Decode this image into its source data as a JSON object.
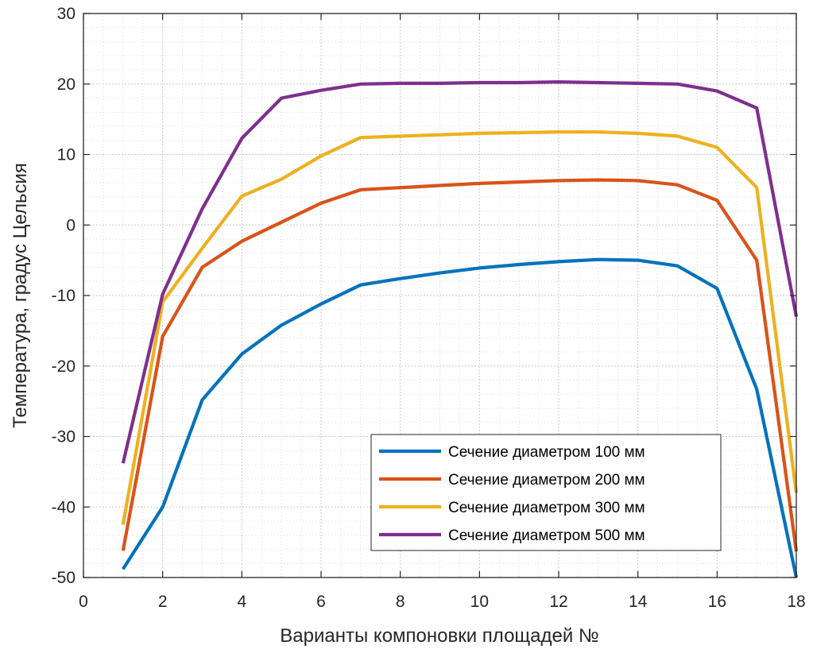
{
  "chart_data": {
    "type": "line",
    "title": "",
    "xlabel": "Варианты компоновки площадей №",
    "ylabel": "Температура, градус Цельсия",
    "xlim": [
      0,
      18
    ],
    "ylim": [
      -50,
      30
    ],
    "xticks": [
      "0",
      "2",
      "4",
      "6",
      "8",
      "10",
      "12",
      "14",
      "16",
      "18"
    ],
    "yticks": [
      "30",
      "20",
      "10",
      "0",
      "-10",
      "-20",
      "-30",
      "-40",
      "-50"
    ],
    "grid": true,
    "minor_grid": true,
    "legend_position": "bottom-right",
    "x": [
      1,
      2,
      3,
      4,
      5,
      6,
      7,
      8,
      9,
      10,
      11,
      12,
      13,
      14,
      15,
      16,
      17,
      18
    ],
    "series": [
      {
        "name": "Сечение диаметром 100 мм",
        "color": "#0072BD",
        "values": [
          -48.8,
          -40.0,
          -24.8,
          -18.3,
          -14.2,
          -11.2,
          -8.5,
          -7.6,
          -6.8,
          -6.1,
          -5.6,
          -5.2,
          -4.9,
          -5.0,
          -5.8,
          -9.0,
          -23.3,
          -50.0
        ]
      },
      {
        "name": "Сечение диаметром 200 мм",
        "color": "#D95319",
        "values": [
          -46.2,
          -15.8,
          -6.0,
          -2.3,
          0.4,
          3.1,
          5.0,
          5.3,
          5.6,
          5.9,
          6.1,
          6.3,
          6.4,
          6.3,
          5.7,
          3.5,
          -5.0,
          -46.3
        ]
      },
      {
        "name": "Сечение диаметром 300 мм",
        "color": "#EDB120",
        "values": [
          -42.5,
          -10.9,
          -3.3,
          4.1,
          6.5,
          9.8,
          12.4,
          12.6,
          12.8,
          13.0,
          13.1,
          13.2,
          13.2,
          13.0,
          12.6,
          11.0,
          5.3,
          -38.0
        ]
      },
      {
        "name": "Сечение диаметром 500 мм",
        "color": "#7E2F8E",
        "values": [
          -33.8,
          -9.8,
          2.3,
          12.3,
          18.0,
          19.1,
          20.0,
          20.1,
          20.1,
          20.2,
          20.2,
          20.3,
          20.2,
          20.1,
          20.0,
          19.0,
          16.6,
          -13.0
        ]
      }
    ]
  }
}
